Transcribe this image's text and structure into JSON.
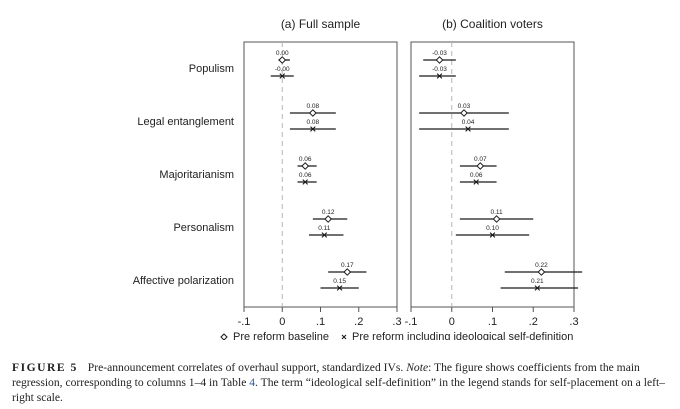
{
  "caption": {
    "label": "FIGURE 5",
    "text_1": "Pre-announcement correlates of overhaul support, standardized IVs.",
    "note_label": "Note",
    "text_2": ": The figure shows coefficients from the main regression, corresponding to columns 1–4 in Table ",
    "table_ref": "4",
    "text_3": ". The term “ideological self-definition” in the legend stands for self-placement on a left–right scale."
  },
  "chart_data": {
    "type": "scatter",
    "subtype": "coefficient-plot",
    "categories": [
      "Populism",
      "Legal entanglement",
      "Majoritarianism",
      "Personalism",
      "Affective polarization"
    ],
    "xlim": [
      -0.1,
      0.3
    ],
    "xticks": [
      "-.1",
      "0",
      ".1",
      ".2",
      ".3"
    ],
    "reference_line": 0,
    "grid": false,
    "legend_position": "bottom",
    "panels": [
      {
        "title": "(a) Full sample",
        "series": [
          {
            "name": "Pre reform baseline",
            "marker": "diamond",
            "values": [
              0.0,
              0.08,
              0.06,
              0.12,
              0.17
            ],
            "labels": [
              "0.00",
              "0.08",
              "0.06",
              "0.12",
              "0.17"
            ],
            "ci_low": [
              -0.01,
              0.02,
              0.04,
              0.08,
              0.12
            ],
            "ci_high": [
              0.02,
              0.14,
              0.09,
              0.17,
              0.22
            ]
          },
          {
            "name": "Pre reform including ideological self-definition",
            "marker": "x",
            "values": [
              0.0,
              0.08,
              0.06,
              0.11,
              0.15
            ],
            "labels": [
              "-0.00",
              "0.08",
              "0.06",
              "0.11",
              "0.15"
            ],
            "ci_low": [
              -0.03,
              0.02,
              0.04,
              0.07,
              0.1
            ],
            "ci_high": [
              0.03,
              0.14,
              0.09,
              0.16,
              0.2
            ]
          }
        ]
      },
      {
        "title": "(b) Coalition voters",
        "series": [
          {
            "name": "Pre reform baseline",
            "marker": "diamond",
            "values": [
              -0.03,
              0.03,
              0.07,
              0.11,
              0.22
            ],
            "labels": [
              "-0.03",
              "0.03",
              "0.07",
              "0.11",
              "0.22"
            ],
            "ci_low": [
              -0.07,
              -0.08,
              0.02,
              0.02,
              0.13
            ],
            "ci_high": [
              0.01,
              0.14,
              0.11,
              0.2,
              0.32
            ]
          },
          {
            "name": "Pre reform including ideological self-definition",
            "marker": "x",
            "values": [
              -0.03,
              0.04,
              0.06,
              0.1,
              0.21
            ],
            "labels": [
              "-0.03",
              "0.04",
              "0.06",
              "0.10",
              "0.21"
            ],
            "ci_low": [
              -0.08,
              -0.08,
              0.02,
              0.01,
              0.12
            ],
            "ci_high": [
              0.01,
              0.14,
              0.11,
              0.19,
              0.31
            ]
          }
        ]
      }
    ]
  }
}
